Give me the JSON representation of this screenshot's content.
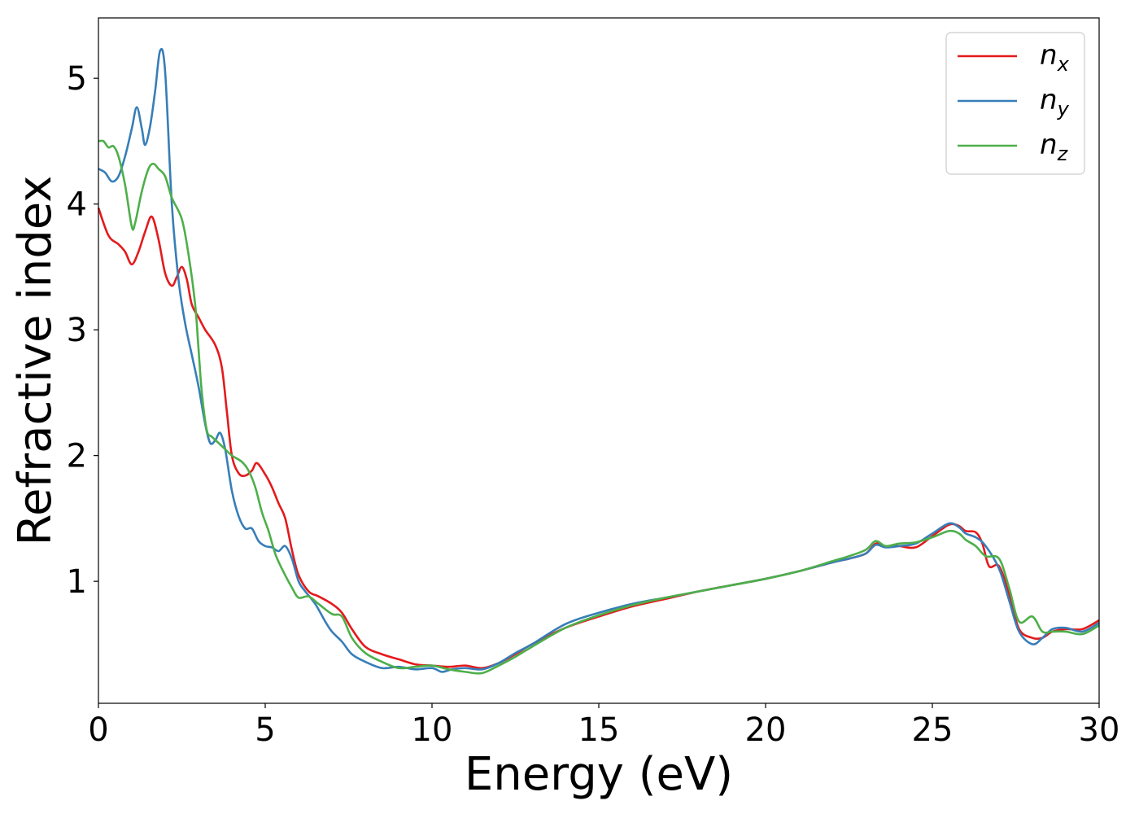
{
  "chart_data": {
    "type": "line",
    "title": "",
    "xlabel": "Energy (eV)",
    "ylabel": "Refractive index",
    "xlim": [
      0,
      30
    ],
    "ylim": [
      0.03,
      5.48
    ],
    "xticks": [
      0,
      5,
      10,
      15,
      20,
      25,
      30
    ],
    "xtick_labels": [
      "0",
      "5",
      "10",
      "15",
      "20",
      "25",
      "30"
    ],
    "yticks": [
      1,
      2,
      3,
      4,
      5
    ],
    "ytick_labels": [
      "1",
      "2",
      "3",
      "4",
      "5"
    ],
    "grid": false,
    "legend_position": "top-right",
    "series": [
      {
        "name": "n_x",
        "label_base": "n",
        "label_sub": "x",
        "color": "#e41a1c",
        "points": [
          [
            0,
            3.97
          ],
          [
            0.3,
            3.75
          ],
          [
            0.6,
            3.68
          ],
          [
            0.8,
            3.62
          ],
          [
            1.0,
            3.52
          ],
          [
            1.2,
            3.62
          ],
          [
            1.4,
            3.78
          ],
          [
            1.6,
            3.9
          ],
          [
            1.8,
            3.72
          ],
          [
            2.0,
            3.45
          ],
          [
            2.2,
            3.35
          ],
          [
            2.35,
            3.42
          ],
          [
            2.5,
            3.5
          ],
          [
            2.65,
            3.4
          ],
          [
            2.8,
            3.2
          ],
          [
            3.0,
            3.1
          ],
          [
            3.2,
            3.0
          ],
          [
            3.5,
            2.88
          ],
          [
            3.7,
            2.7
          ],
          [
            3.85,
            2.35
          ],
          [
            4.0,
            2.0
          ],
          [
            4.2,
            1.86
          ],
          [
            4.4,
            1.84
          ],
          [
            4.6,
            1.88
          ],
          [
            4.75,
            1.94
          ],
          [
            5.0,
            1.85
          ],
          [
            5.2,
            1.75
          ],
          [
            5.4,
            1.62
          ],
          [
            5.6,
            1.5
          ],
          [
            5.8,
            1.25
          ],
          [
            6.0,
            1.05
          ],
          [
            6.3,
            0.92
          ],
          [
            6.6,
            0.88
          ],
          [
            7.0,
            0.82
          ],
          [
            7.3,
            0.75
          ],
          [
            7.6,
            0.62
          ],
          [
            8.0,
            0.48
          ],
          [
            8.5,
            0.42
          ],
          [
            9.0,
            0.38
          ],
          [
            9.5,
            0.34
          ],
          [
            10.0,
            0.33
          ],
          [
            10.5,
            0.32
          ],
          [
            11.0,
            0.33
          ],
          [
            11.5,
            0.31
          ],
          [
            12.0,
            0.35
          ],
          [
            12.5,
            0.42
          ],
          [
            13.0,
            0.5
          ],
          [
            14.0,
            0.63
          ],
          [
            15.0,
            0.72
          ],
          [
            16.0,
            0.8
          ],
          [
            17.0,
            0.86
          ],
          [
            18.0,
            0.92
          ],
          [
            19.0,
            0.97
          ],
          [
            20.0,
            1.02
          ],
          [
            21.0,
            1.08
          ],
          [
            22.0,
            1.15
          ],
          [
            22.5,
            1.18
          ],
          [
            23.0,
            1.22
          ],
          [
            23.3,
            1.3
          ],
          [
            23.6,
            1.28
          ],
          [
            24.0,
            1.28
          ],
          [
            24.5,
            1.27
          ],
          [
            25.0,
            1.36
          ],
          [
            25.5,
            1.45
          ],
          [
            25.8,
            1.44
          ],
          [
            26.0,
            1.4
          ],
          [
            26.3,
            1.39
          ],
          [
            26.5,
            1.3
          ],
          [
            26.7,
            1.12
          ],
          [
            27.0,
            1.12
          ],
          [
            27.3,
            0.9
          ],
          [
            27.6,
            0.62
          ],
          [
            28.0,
            0.55
          ],
          [
            28.3,
            0.55
          ],
          [
            28.6,
            0.6
          ],
          [
            29.0,
            0.62
          ],
          [
            29.5,
            0.62
          ],
          [
            30.0,
            0.69
          ]
        ]
      },
      {
        "name": "n_y",
        "label_base": "n",
        "label_sub": "y",
        "color": "#377eb8",
        "points": [
          [
            0,
            4.28
          ],
          [
            0.2,
            4.25
          ],
          [
            0.4,
            4.18
          ],
          [
            0.6,
            4.22
          ],
          [
            0.8,
            4.38
          ],
          [
            1.0,
            4.6
          ],
          [
            1.15,
            4.77
          ],
          [
            1.3,
            4.6
          ],
          [
            1.4,
            4.47
          ],
          [
            1.55,
            4.62
          ],
          [
            1.7,
            4.9
          ],
          [
            1.85,
            5.22
          ],
          [
            2.0,
            5.05
          ],
          [
            2.2,
            4.0
          ],
          [
            2.4,
            3.4
          ],
          [
            2.6,
            3.05
          ],
          [
            2.8,
            2.8
          ],
          [
            3.0,
            2.55
          ],
          [
            3.2,
            2.25
          ],
          [
            3.35,
            2.1
          ],
          [
            3.5,
            2.12
          ],
          [
            3.65,
            2.18
          ],
          [
            3.8,
            2.05
          ],
          [
            4.0,
            1.72
          ],
          [
            4.2,
            1.52
          ],
          [
            4.4,
            1.42
          ],
          [
            4.6,
            1.42
          ],
          [
            4.8,
            1.32
          ],
          [
            5.0,
            1.28
          ],
          [
            5.2,
            1.27
          ],
          [
            5.4,
            1.24
          ],
          [
            5.6,
            1.28
          ],
          [
            5.8,
            1.18
          ],
          [
            6.0,
            1.0
          ],
          [
            6.2,
            0.92
          ],
          [
            6.5,
            0.82
          ],
          [
            6.8,
            0.68
          ],
          [
            7.0,
            0.6
          ],
          [
            7.3,
            0.52
          ],
          [
            7.6,
            0.42
          ],
          [
            8.0,
            0.36
          ],
          [
            8.5,
            0.31
          ],
          [
            9.0,
            0.32
          ],
          [
            9.5,
            0.3
          ],
          [
            10.0,
            0.31
          ],
          [
            10.3,
            0.28
          ],
          [
            10.6,
            0.3
          ],
          [
            11.0,
            0.31
          ],
          [
            11.5,
            0.3
          ],
          [
            12.0,
            0.35
          ],
          [
            12.5,
            0.43
          ],
          [
            13.0,
            0.5
          ],
          [
            14.0,
            0.66
          ],
          [
            15.0,
            0.75
          ],
          [
            16.0,
            0.82
          ],
          [
            17.0,
            0.87
          ],
          [
            18.0,
            0.92
          ],
          [
            19.0,
            0.97
          ],
          [
            20.0,
            1.02
          ],
          [
            21.0,
            1.08
          ],
          [
            22.0,
            1.15
          ],
          [
            22.5,
            1.18
          ],
          [
            23.0,
            1.22
          ],
          [
            23.3,
            1.29
          ],
          [
            23.6,
            1.27
          ],
          [
            24.0,
            1.28
          ],
          [
            24.5,
            1.3
          ],
          [
            25.0,
            1.38
          ],
          [
            25.5,
            1.46
          ],
          [
            25.8,
            1.43
          ],
          [
            26.0,
            1.38
          ],
          [
            26.3,
            1.35
          ],
          [
            26.6,
            1.28
          ],
          [
            27.0,
            1.1
          ],
          [
            27.3,
            0.85
          ],
          [
            27.6,
            0.6
          ],
          [
            28.0,
            0.5
          ],
          [
            28.3,
            0.55
          ],
          [
            28.6,
            0.62
          ],
          [
            29.0,
            0.63
          ],
          [
            29.5,
            0.6
          ],
          [
            30.0,
            0.67
          ]
        ]
      },
      {
        "name": "n_z",
        "label_base": "n",
        "label_sub": "z",
        "color": "#4daf4a",
        "points": [
          [
            0,
            4.5
          ],
          [
            0.15,
            4.5
          ],
          [
            0.3,
            4.45
          ],
          [
            0.45,
            4.46
          ],
          [
            0.6,
            4.38
          ],
          [
            0.8,
            4.15
          ],
          [
            1.0,
            3.82
          ],
          [
            1.1,
            3.85
          ],
          [
            1.3,
            4.1
          ],
          [
            1.5,
            4.28
          ],
          [
            1.65,
            4.32
          ],
          [
            1.8,
            4.28
          ],
          [
            2.0,
            4.22
          ],
          [
            2.2,
            4.05
          ],
          [
            2.5,
            3.88
          ],
          [
            2.7,
            3.6
          ],
          [
            2.9,
            3.2
          ],
          [
            3.0,
            2.85
          ],
          [
            3.1,
            2.5
          ],
          [
            3.25,
            2.2
          ],
          [
            3.4,
            2.15
          ],
          [
            3.6,
            2.1
          ],
          [
            3.8,
            2.05
          ],
          [
            4.0,
            2.0
          ],
          [
            4.3,
            1.95
          ],
          [
            4.5,
            1.88
          ],
          [
            4.7,
            1.75
          ],
          [
            4.9,
            1.55
          ],
          [
            5.1,
            1.4
          ],
          [
            5.3,
            1.22
          ],
          [
            5.5,
            1.1
          ],
          [
            5.8,
            0.95
          ],
          [
            6.0,
            0.87
          ],
          [
            6.3,
            0.88
          ],
          [
            6.6,
            0.82
          ],
          [
            7.0,
            0.74
          ],
          [
            7.3,
            0.72
          ],
          [
            7.6,
            0.55
          ],
          [
            8.0,
            0.43
          ],
          [
            8.5,
            0.36
          ],
          [
            9.0,
            0.31
          ],
          [
            9.5,
            0.32
          ],
          [
            10.0,
            0.33
          ],
          [
            10.5,
            0.3
          ],
          [
            11.0,
            0.28
          ],
          [
            11.5,
            0.27
          ],
          [
            12.0,
            0.33
          ],
          [
            12.5,
            0.4
          ],
          [
            13.0,
            0.48
          ],
          [
            14.0,
            0.63
          ],
          [
            15.0,
            0.73
          ],
          [
            16.0,
            0.81
          ],
          [
            17.0,
            0.87
          ],
          [
            18.0,
            0.92
          ],
          [
            19.0,
            0.97
          ],
          [
            20.0,
            1.02
          ],
          [
            21.0,
            1.08
          ],
          [
            22.0,
            1.16
          ],
          [
            22.5,
            1.2
          ],
          [
            23.0,
            1.25
          ],
          [
            23.3,
            1.32
          ],
          [
            23.6,
            1.28
          ],
          [
            24.0,
            1.3
          ],
          [
            24.5,
            1.31
          ],
          [
            25.0,
            1.35
          ],
          [
            25.5,
            1.4
          ],
          [
            25.8,
            1.38
          ],
          [
            26.0,
            1.33
          ],
          [
            26.3,
            1.28
          ],
          [
            26.6,
            1.2
          ],
          [
            27.0,
            1.18
          ],
          [
            27.3,
            0.95
          ],
          [
            27.6,
            0.68
          ],
          [
            28.0,
            0.72
          ],
          [
            28.3,
            0.6
          ],
          [
            28.6,
            0.6
          ],
          [
            29.0,
            0.6
          ],
          [
            29.5,
            0.58
          ],
          [
            30.0,
            0.65
          ]
        ]
      }
    ]
  }
}
